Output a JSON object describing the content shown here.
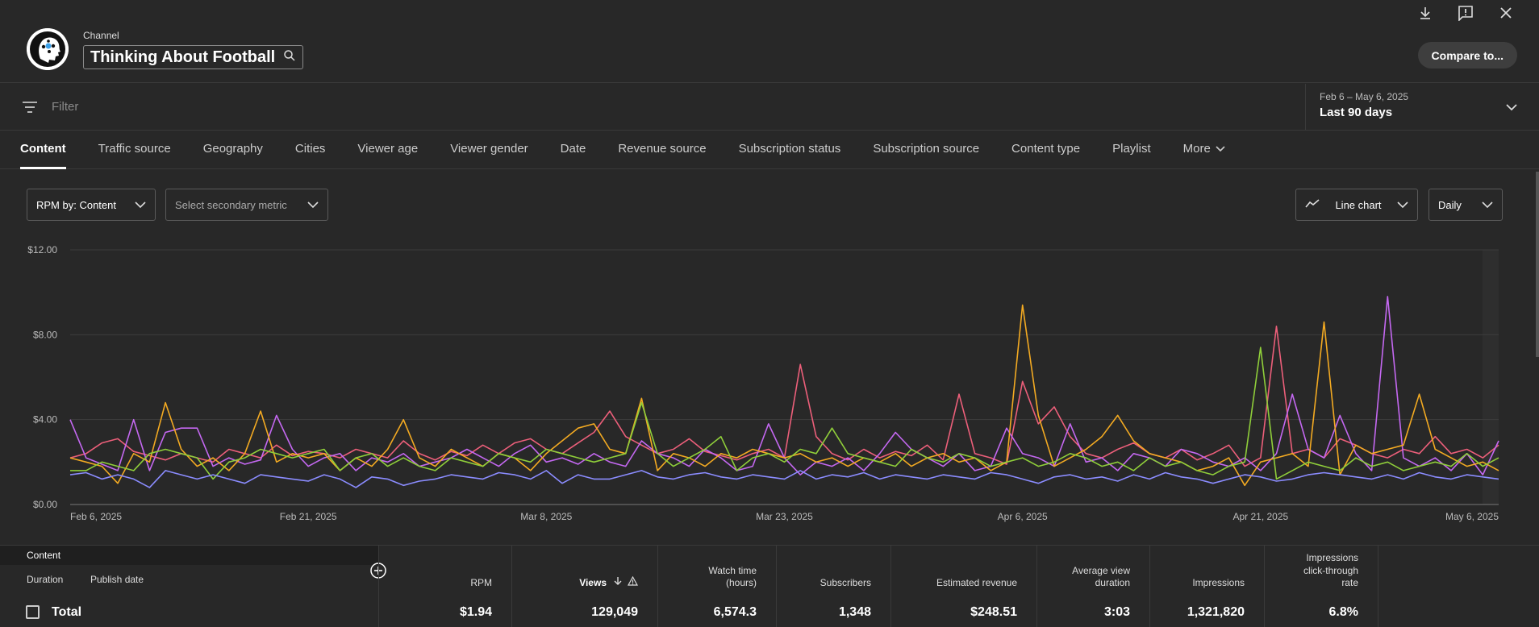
{
  "header": {
    "channel_label": "Channel",
    "channel_name": "Thinking About Football",
    "compare_label": "Compare to..."
  },
  "filter": {
    "placeholder": "Filter",
    "date_range": "Feb 6 – May 6, 2025",
    "date_preset": "Last 90 days"
  },
  "tabs": [
    {
      "label": "Content"
    },
    {
      "label": "Traffic source"
    },
    {
      "label": "Geography"
    },
    {
      "label": "Cities"
    },
    {
      "label": "Viewer age"
    },
    {
      "label": "Viewer gender"
    },
    {
      "label": "Date"
    },
    {
      "label": "Revenue source"
    },
    {
      "label": "Subscription status"
    },
    {
      "label": "Subscription source"
    },
    {
      "label": "Content type"
    },
    {
      "label": "Playlist"
    },
    {
      "label": "More"
    }
  ],
  "controls": {
    "primary_metric": "RPM by: Content",
    "secondary_metric": "Select secondary metric",
    "chart_type": "Line chart",
    "interval": "Daily"
  },
  "chart_data": {
    "type": "line",
    "y_ticks": [
      "$0.00",
      "$4.00",
      "$8.00",
      "$12.00"
    ],
    "ylim": [
      0,
      12
    ],
    "x_ticks": [
      "Feb 6, 2025",
      "Feb 21, 2025",
      "Mar 8, 2025",
      "Mar 23, 2025",
      "Apr 6, 2025",
      "Apr 21, 2025",
      "May 6, 2025"
    ],
    "grid": true,
    "series": [
      {
        "color": "#ec5f7a",
        "values": [
          2.2,
          2.4,
          2.9,
          3.1,
          2.5,
          2.3,
          2.1,
          2.4,
          2.2,
          2.0,
          2.6,
          2.4,
          2.2,
          2.8,
          2.3,
          2.5,
          2.4,
          2.2,
          2.6,
          2.4,
          2.2,
          3.0,
          2.4,
          2.1,
          2.5,
          2.3,
          2.8,
          2.4,
          2.9,
          3.1,
          2.6,
          2.4,
          2.9,
          3.4,
          4.4,
          3.2,
          2.8,
          2.4,
          2.6,
          3.1,
          2.5,
          2.3,
          2.1,
          2.4,
          2.6,
          2.2,
          6.6,
          3.2,
          2.4,
          2.1,
          2.6,
          2.2,
          2.5,
          2.3,
          2.8,
          2.1,
          5.2,
          2.4,
          2.2,
          1.9,
          5.8,
          3.8,
          4.6,
          3.2,
          2.4,
          2.2,
          2.6,
          2.9,
          2.4,
          2.2,
          2.6,
          2.1,
          2.4,
          2.8,
          1.8,
          2.2,
          8.4,
          2.4,
          2.6,
          2.2,
          3.1,
          2.8,
          2.4,
          2.2,
          2.6,
          2.4,
          3.2,
          2.4,
          2.6,
          2.2,
          2.8
        ]
      },
      {
        "color": "#c468f1",
        "values": [
          4.0,
          2.2,
          1.9,
          1.6,
          4.0,
          1.6,
          3.4,
          3.6,
          3.6,
          1.8,
          2.2,
          1.9,
          2.1,
          4.2,
          2.6,
          1.8,
          2.2,
          2.4,
          1.6,
          2.2,
          2.0,
          2.4,
          1.8,
          2.0,
          2.2,
          2.6,
          2.2,
          1.8,
          2.4,
          2.8,
          2.0,
          2.2,
          1.9,
          2.4,
          2.0,
          1.8,
          3.0,
          2.4,
          2.2,
          1.8,
          2.6,
          2.2,
          1.6,
          1.8,
          3.8,
          2.2,
          1.4,
          2.0,
          1.8,
          2.2,
          1.6,
          2.4,
          3.4,
          2.6,
          2.2,
          1.8,
          2.4,
          1.6,
          1.8,
          3.6,
          2.4,
          2.2,
          1.8,
          3.8,
          2.0,
          2.2,
          1.6,
          2.4,
          2.2,
          1.8,
          2.6,
          2.4,
          2.0,
          1.8,
          2.2,
          1.6,
          2.4,
          5.2,
          2.6,
          2.2,
          4.2,
          2.4,
          1.6,
          9.8,
          2.2,
          1.8,
          2.2,
          1.6,
          2.4,
          1.4,
          3.0
        ]
      },
      {
        "color": "#f3aa22",
        "values": [
          2.2,
          2.0,
          1.8,
          1.0,
          2.4,
          2.0,
          4.8,
          2.6,
          1.8,
          2.2,
          1.6,
          2.4,
          4.4,
          2.0,
          2.4,
          2.2,
          2.4,
          1.6,
          2.2,
          1.8,
          2.6,
          4.0,
          2.2,
          1.8,
          2.6,
          2.2,
          1.8,
          2.4,
          2.2,
          1.6,
          2.4,
          3.0,
          3.6,
          3.8,
          2.6,
          2.4,
          5.0,
          1.6,
          2.4,
          2.2,
          1.8,
          2.4,
          2.2,
          2.6,
          2.4,
          2.2,
          2.4,
          2.0,
          2.2,
          1.8,
          2.2,
          2.0,
          2.4,
          1.8,
          2.2,
          2.4,
          2.0,
          2.2,
          1.6,
          2.0,
          9.4,
          4.2,
          1.8,
          2.2,
          2.6,
          3.2,
          4.2,
          3.0,
          2.4,
          2.2,
          2.0,
          1.6,
          1.8,
          2.2,
          0.9,
          2.0,
          2.2,
          2.4,
          1.8,
          8.6,
          1.4,
          2.8,
          2.4,
          2.6,
          2.8,
          5.2,
          2.6,
          2.2,
          1.8,
          2.0,
          1.6
        ]
      },
      {
        "color": "#8fce3a",
        "values": [
          1.6,
          1.6,
          2.0,
          1.8,
          1.6,
          2.4,
          2.6,
          2.4,
          2.2,
          1.2,
          2.0,
          2.2,
          2.6,
          2.4,
          2.2,
          2.4,
          2.6,
          1.6,
          2.2,
          2.4,
          1.8,
          2.2,
          1.8,
          1.6,
          2.2,
          2.0,
          1.8,
          2.4,
          2.2,
          2.0,
          2.6,
          2.4,
          2.2,
          2.0,
          2.2,
          2.4,
          4.8,
          2.4,
          1.8,
          2.2,
          2.6,
          3.2,
          1.6,
          2.2,
          2.4,
          2.0,
          2.6,
          2.4,
          3.6,
          2.4,
          2.2,
          2.0,
          1.8,
          2.6,
          2.2,
          2.0,
          2.4,
          2.2,
          1.8,
          2.0,
          2.2,
          1.8,
          2.0,
          2.4,
          2.2,
          1.8,
          2.0,
          1.6,
          2.2,
          1.8,
          2.0,
          1.6,
          1.4,
          1.8,
          2.0,
          7.4,
          1.2,
          1.6,
          2.0,
          1.8,
          1.6,
          2.2,
          1.8,
          2.0,
          1.6,
          1.8,
          2.0,
          1.8,
          2.4,
          1.8,
          2.2
        ]
      },
      {
        "color": "#8b8cff",
        "values": [
          1.4,
          1.5,
          1.2,
          1.4,
          1.2,
          0.8,
          1.6,
          1.4,
          1.2,
          1.4,
          1.2,
          1.0,
          1.4,
          1.3,
          1.2,
          1.1,
          1.4,
          1.2,
          0.8,
          1.3,
          1.2,
          0.9,
          1.1,
          1.2,
          1.4,
          1.3,
          1.2,
          1.5,
          1.4,
          1.2,
          1.6,
          1.0,
          1.4,
          1.2,
          1.2,
          1.4,
          1.6,
          1.3,
          1.2,
          1.4,
          1.5,
          1.3,
          1.2,
          1.4,
          1.3,
          1.2,
          1.6,
          1.2,
          1.4,
          1.3,
          1.5,
          1.2,
          1.4,
          1.3,
          1.2,
          1.4,
          1.3,
          1.2,
          1.5,
          1.4,
          1.2,
          1.0,
          1.3,
          1.4,
          1.2,
          1.3,
          1.1,
          1.4,
          1.2,
          1.5,
          1.3,
          1.2,
          1.0,
          1.2,
          1.4,
          1.3,
          1.1,
          1.2,
          1.4,
          1.5,
          1.4,
          1.3,
          1.2,
          1.4,
          1.2,
          1.5,
          1.3,
          1.2,
          1.4,
          1.3,
          1.2
        ]
      }
    ]
  },
  "table": {
    "content_label": "Content",
    "duration_label": "Duration",
    "publish_date_label": "Publish date",
    "columns": [
      {
        "label": "RPM",
        "total": "$1.94"
      },
      {
        "label": "Views",
        "total": "129,049"
      },
      {
        "label": "Watch time\n(hours)",
        "total": "6,574.3"
      },
      {
        "label": "Subscribers",
        "total": "1,348"
      },
      {
        "label": "Estimated revenue",
        "total": "$248.51"
      },
      {
        "label": "Average view\nduration",
        "total": "3:03"
      },
      {
        "label": "Impressions",
        "total": "1,321,820"
      },
      {
        "label": "Impressions\nclick-through\nrate",
        "total": "6.8%"
      }
    ],
    "total_label": "Total"
  }
}
